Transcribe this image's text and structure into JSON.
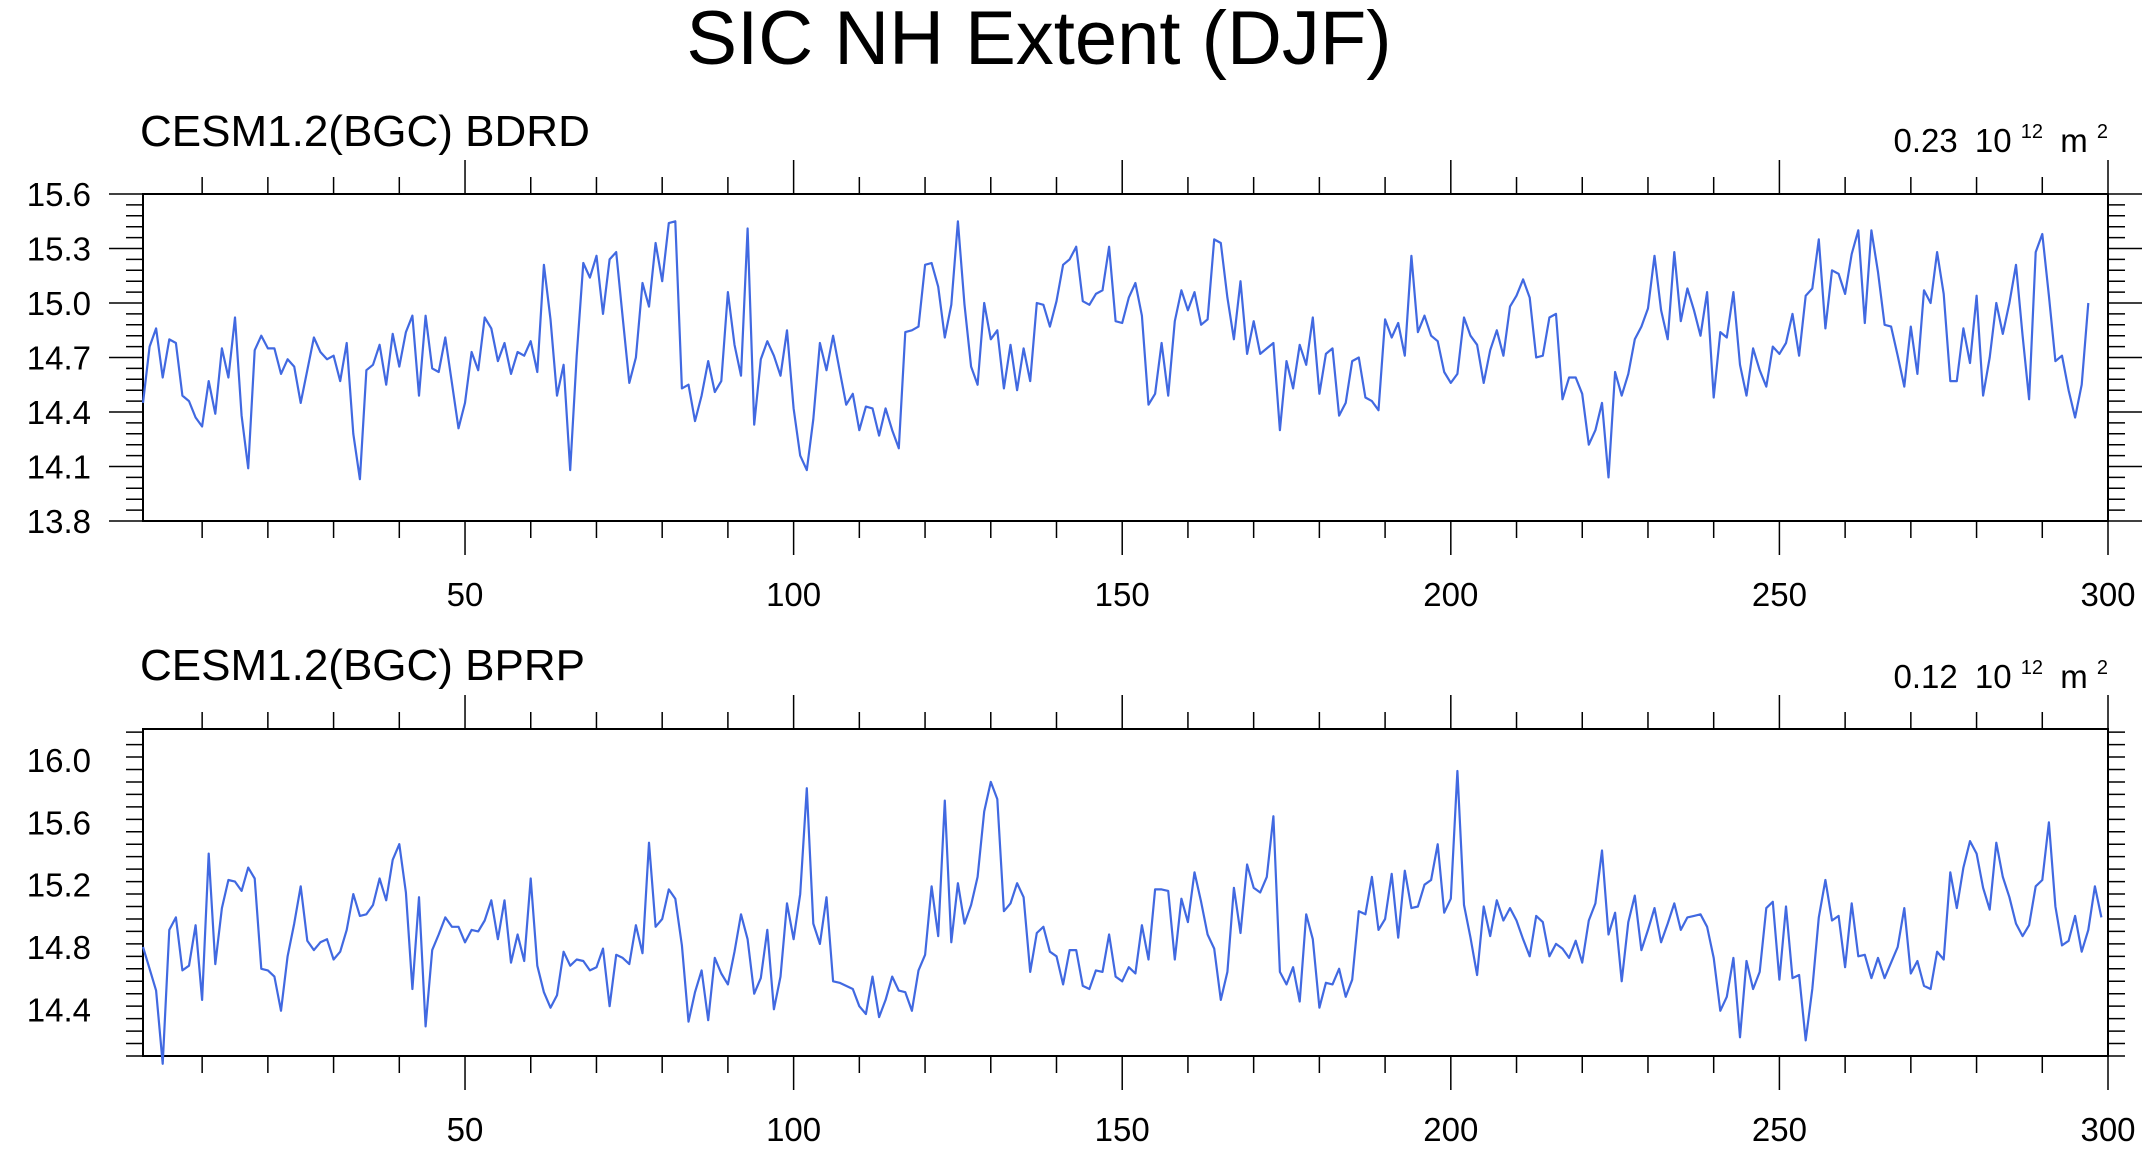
{
  "title": "SIC NH Extent (DJF)",
  "chart_data": [
    {
      "type": "line",
      "title": "CESM1.2(BGC) BDRD",
      "stat": {
        "value": "0.23",
        "base": "10",
        "exp": "12",
        "unit": "m",
        "unit_exp": "2"
      },
      "xlim": [
        1,
        300
      ],
      "ylim": [
        13.8,
        15.6
      ],
      "xticks": [
        50,
        100,
        150,
        200,
        250,
        300
      ],
      "yticks": [
        13.8,
        14.1,
        14.4,
        14.7,
        15.0,
        15.3,
        15.6
      ],
      "ytick_labels": [
        "13.8",
        "14.1",
        "14.4",
        "14.7",
        "15.0",
        "15.3",
        "15.6"
      ],
      "series": [
        {
          "color": "#4169e1",
          "x_start": 1,
          "values": [
            14.45,
            14.76,
            14.86,
            14.59,
            14.8,
            14.78,
            14.49,
            14.46,
            14.37,
            14.32,
            14.57,
            14.39,
            14.75,
            14.59,
            14.92,
            14.38,
            14.09,
            14.74,
            14.82,
            14.75,
            14.75,
            14.61,
            14.69,
            14.65,
            14.45,
            14.63,
            14.81,
            14.73,
            14.69,
            14.71,
            14.57,
            14.78,
            14.28,
            14.03,
            14.63,
            14.66,
            14.77,
            14.55,
            14.83,
            14.65,
            14.84,
            14.93,
            14.49,
            14.93,
            14.64,
            14.62,
            14.81,
            14.56,
            14.31,
            14.45,
            14.73,
            14.63,
            14.92,
            14.86,
            14.68,
            14.78,
            14.61,
            14.73,
            14.71,
            14.79,
            14.62,
            15.21,
            14.91,
            14.49,
            14.66,
            14.08,
            14.71,
            15.22,
            15.14,
            15.26,
            14.94,
            15.24,
            15.28,
            14.92,
            14.56,
            14.7,
            15.11,
            14.98,
            15.33,
            15.12,
            15.44,
            15.45,
            14.53,
            14.55,
            14.35,
            14.49,
            14.68,
            14.51,
            14.57,
            15.06,
            14.77,
            14.6,
            15.41,
            14.33,
            14.69,
            14.79,
            14.71,
            14.6,
            14.85,
            14.42,
            14.16,
            14.08,
            14.36,
            14.78,
            14.63,
            14.82,
            14.63,
            14.44,
            14.5,
            14.3,
            14.43,
            14.42,
            14.27,
            14.42,
            14.3,
            14.2,
            14.84,
            14.85,
            14.87,
            15.21,
            15.22,
            15.09,
            14.81,
            14.99,
            15.45,
            14.99,
            14.65,
            14.55,
            15.0,
            14.8,
            14.85,
            14.53,
            14.77,
            14.52,
            14.75,
            14.57,
            15.0,
            14.99,
            14.87,
            15.01,
            15.21,
            15.24,
            15.31,
            15.01,
            14.99,
            15.05,
            15.07,
            15.31,
            14.9,
            14.89,
            15.03,
            15.11,
            14.93,
            14.44,
            14.5,
            14.78,
            14.49,
            14.9,
            15.07,
            14.96,
            15.06,
            14.88,
            14.91,
            15.35,
            15.33,
            15.03,
            14.8,
            15.12,
            14.72,
            14.9,
            14.72,
            14.75,
            14.78,
            14.3,
            14.68,
            14.53,
            14.77,
            14.66,
            14.92,
            14.5,
            14.72,
            14.75,
            14.38,
            14.45,
            14.68,
            14.7,
            14.48,
            14.46,
            14.41,
            14.91,
            14.81,
            14.89,
            14.71,
            15.26,
            14.84,
            14.93,
            14.82,
            14.79,
            14.62,
            14.56,
            14.61,
            14.92,
            14.82,
            14.77,
            14.56,
            14.74,
            14.85,
            14.71,
            14.98,
            15.04,
            15.13,
            15.03,
            14.7,
            14.71,
            14.92,
            14.94,
            14.47,
            14.59,
            14.59,
            14.5,
            14.22,
            14.3,
            14.45,
            14.04,
            14.62,
            14.49,
            14.61,
            14.8,
            14.87,
            14.97,
            15.26,
            14.96,
            14.8,
            15.28,
            14.9,
            15.08,
            14.96,
            14.82,
            15.06,
            14.48,
            14.84,
            14.81,
            15.06,
            14.66,
            14.49,
            14.75,
            14.63,
            14.54,
            14.76,
            14.72,
            14.78,
            14.94,
            14.71,
            15.04,
            15.08,
            15.35,
            14.86,
            15.18,
            15.16,
            15.05,
            15.27,
            15.4,
            14.89,
            15.4,
            15.17,
            14.88,
            14.87,
            14.71,
            14.54,
            14.87,
            14.61,
            15.07,
            15.0,
            15.28,
            15.05,
            14.57,
            14.57,
            14.86,
            14.67,
            15.04,
            14.49,
            14.7,
            15.0,
            14.83,
            15.0,
            15.21,
            14.82,
            14.47,
            15.28,
            15.38,
            15.04,
            14.68,
            14.71,
            14.52,
            14.37,
            14.55,
            15.0
          ]
        }
      ]
    },
    {
      "type": "line",
      "title": "CESM1.2(BGC) BPRP",
      "stat": {
        "value": "0.12",
        "base": "10",
        "exp": "12",
        "unit": "m",
        "unit_exp": "2"
      },
      "xlim": [
        1,
        300
      ],
      "ylim": [
        14.1,
        16.2
      ],
      "xticks": [
        50,
        100,
        150,
        200,
        250,
        300
      ],
      "yticks": [
        14.4,
        14.8,
        15.2,
        15.6,
        16.0
      ],
      "ytick_labels": [
        "14.4",
        "14.8",
        "15.2",
        "15.6",
        "16.0"
      ],
      "series": [
        {
          "color": "#4169e1",
          "x_start": 1,
          "values": [
            14.8,
            14.66,
            14.52,
            14.05,
            14.91,
            14.99,
            14.65,
            14.68,
            14.94,
            14.46,
            15.4,
            14.69,
            15.05,
            15.23,
            15.22,
            15.16,
            15.31,
            15.24,
            14.66,
            14.65,
            14.61,
            14.39,
            14.74,
            14.95,
            15.19,
            14.84,
            14.78,
            14.83,
            14.85,
            14.72,
            14.77,
            14.91,
            15.14,
            15.0,
            15.01,
            15.07,
            15.24,
            15.1,
            15.36,
            15.46,
            15.15,
            14.53,
            15.12,
            14.29,
            14.78,
            14.88,
            14.99,
            14.93,
            14.93,
            14.83,
            14.91,
            14.9,
            14.97,
            15.1,
            14.85,
            15.1,
            14.7,
            14.88,
            14.71,
            15.24,
            14.68,
            14.51,
            14.41,
            14.49,
            14.77,
            14.68,
            14.72,
            14.71,
            14.65,
            14.67,
            14.79,
            14.42,
            14.75,
            14.73,
            14.69,
            14.94,
            14.76,
            15.47,
            14.93,
            14.98,
            15.17,
            15.11,
            14.81,
            14.32,
            14.51,
            14.65,
            14.33,
            14.73,
            14.63,
            14.56,
            14.77,
            15.01,
            14.85,
            14.5,
            14.6,
            14.91,
            14.4,
            14.61,
            15.08,
            14.85,
            15.14,
            15.82,
            14.95,
            14.82,
            15.12,
            14.58,
            14.57,
            14.55,
            14.53,
            14.42,
            14.37,
            14.61,
            14.35,
            14.46,
            14.61,
            14.52,
            14.51,
            14.39,
            14.65,
            14.75,
            15.19,
            14.87,
            15.74,
            14.83,
            15.21,
            14.95,
            15.07,
            15.25,
            15.67,
            15.86,
            15.75,
            15.03,
            15.08,
            15.21,
            15.12,
            14.64,
            14.89,
            14.93,
            14.77,
            14.74,
            14.56,
            14.78,
            14.78,
            14.55,
            14.53,
            14.65,
            14.64,
            14.88,
            14.61,
            14.58,
            14.67,
            14.63,
            14.94,
            14.72,
            15.17,
            15.17,
            15.16,
            14.72,
            15.11,
            14.96,
            15.28,
            15.09,
            14.88,
            14.79,
            14.46,
            14.64,
            15.18,
            14.89,
            15.33,
            15.18,
            15.15,
            15.25,
            15.64,
            14.64,
            14.56,
            14.67,
            14.45,
            15.01,
            14.85,
            14.41,
            14.57,
            14.56,
            14.66,
            14.48,
            14.59,
            15.03,
            15.01,
            15.25,
            14.91,
            14.98,
            15.27,
            14.86,
            15.29,
            15.05,
            15.06,
            15.2,
            15.23,
            15.46,
            15.02,
            15.11,
            15.93,
            15.07,
            14.86,
            14.62,
            15.06,
            14.87,
            15.1,
            14.97,
            15.05,
            14.97,
            14.85,
            14.74,
            15.0,
            14.96,
            14.74,
            14.82,
            14.79,
            14.73,
            14.84,
            14.7,
            14.97,
            15.08,
            15.42,
            14.88,
            15.02,
            14.58,
            14.96,
            15.13,
            14.78,
            14.91,
            15.05,
            14.83,
            14.95,
            15.08,
            14.91,
            14.99,
            15.0,
            15.01,
            14.93,
            14.73,
            14.39,
            14.48,
            14.73,
            14.22,
            14.71,
            14.53,
            14.64,
            15.05,
            15.09,
            14.59,
            15.06,
            14.6,
            14.62,
            14.2,
            14.53,
            14.99,
            15.23,
            14.97,
            15.0,
            14.67,
            15.08,
            14.74,
            14.75,
            14.6,
            14.73,
            14.6,
            14.7,
            14.8,
            15.05,
            14.63,
            14.71,
            14.55,
            14.53,
            14.77,
            14.72,
            15.28,
            15.05,
            15.31,
            15.48,
            15.4,
            15.18,
            15.04,
            15.47,
            15.25,
            15.12,
            14.95,
            14.87,
            14.94,
            15.19,
            15.23,
            15.6,
            15.06,
            14.81,
            14.84,
            15.0,
            14.77,
            14.91,
            15.19,
            14.99
          ]
        }
      ]
    }
  ]
}
